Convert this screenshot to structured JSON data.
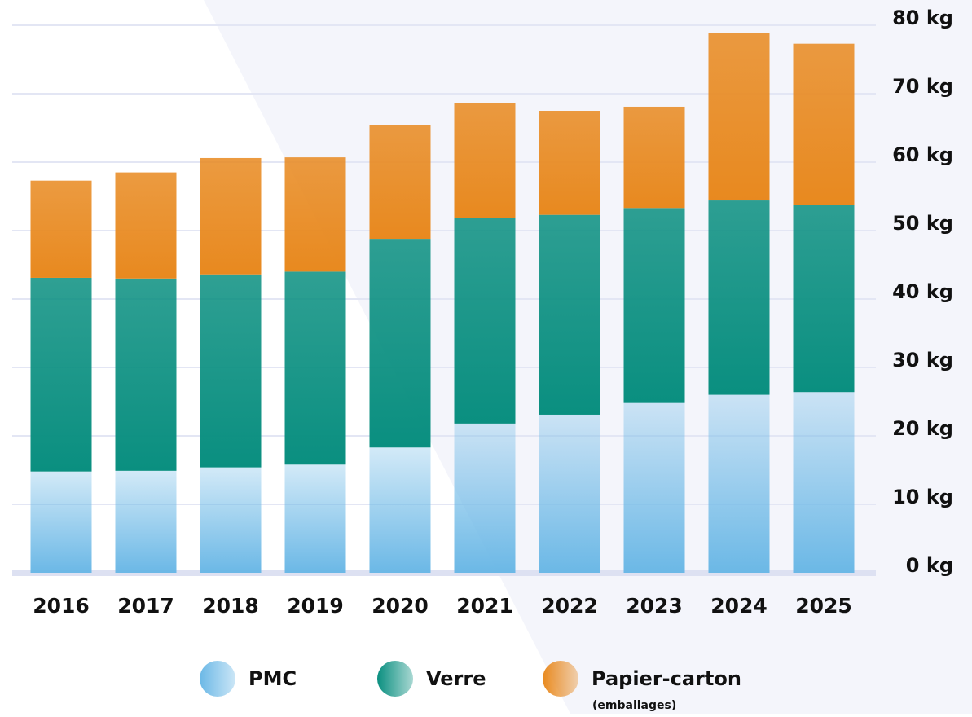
{
  "chart_data": {
    "type": "stacked_bar",
    "categories": [
      "2016",
      "2017",
      "2018",
      "2019",
      "2020",
      "2021",
      "2022",
      "2023",
      "2024",
      "2025"
    ],
    "series": [
      {
        "name": "PMC",
        "color": "#6bb8e6",
        "values": [
          14.8,
          14.9,
          15.4,
          15.8,
          18.3,
          21.8,
          23.1,
          24.8,
          26.0,
          26.4
        ]
      },
      {
        "name": "Verre",
        "color": "#0a8f80",
        "values": [
          28.3,
          28.1,
          28.2,
          28.2,
          30.5,
          30.0,
          29.2,
          28.5,
          28.4,
          27.4
        ]
      },
      {
        "name": "Papier-carton",
        "color": "#e8891f",
        "values": [
          14.2,
          15.5,
          17.0,
          16.7,
          16.6,
          16.8,
          15.2,
          14.8,
          24.5,
          23.5
        ]
      }
    ],
    "legend_note": "(emballages)",
    "ylim": [
      0,
      80
    ],
    "yticks": [
      {
        "value": 0,
        "label": "0 kg"
      },
      {
        "value": 10,
        "label": "10 kg"
      },
      {
        "value": 20,
        "label": "20 kg"
      },
      {
        "value": 30,
        "label": "30 kg"
      },
      {
        "value": 40,
        "label": "40 kg"
      },
      {
        "value": 50,
        "label": "50 kg"
      },
      {
        "value": 60,
        "label": "60 kg"
      },
      {
        "value": 70,
        "label": "70 kg"
      },
      {
        "value": 80,
        "label": "80 kg"
      }
    ],
    "grid": true,
    "legend": "bottom"
  }
}
